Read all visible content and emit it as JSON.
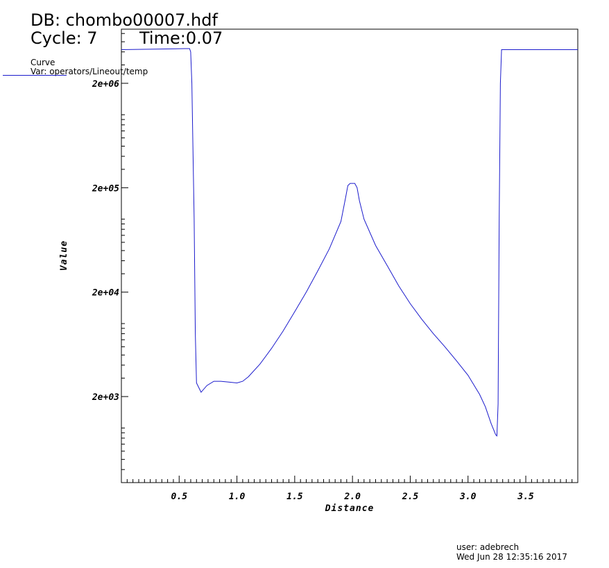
{
  "header": {
    "db": "DB: chombo00007.hdf",
    "cycle": "Cycle: 7",
    "time": "Time:0.07"
  },
  "legend": {
    "heading": "Curve",
    "var": "Var: operators/Lineout/temp"
  },
  "footer": {
    "user": "user: adebrech",
    "date": "Wed Jun 28 12:35:16 2017"
  },
  "chart_data": {
    "type": "line",
    "xlabel": "Distance",
    "ylabel": "Value",
    "xlim": [
      0,
      3.95
    ],
    "ylim": [
      300,
      6600000
    ],
    "yscale": "log",
    "x_ticks": [
      0.5,
      1.0,
      1.5,
      2.0,
      2.5,
      3.0,
      3.5
    ],
    "x_tick_labels": [
      "0.5",
      "1.0",
      "1.5",
      "2.0",
      "2.5",
      "3.0",
      "3.5"
    ],
    "y_ticks": [
      2000,
      20000,
      200000,
      2000000
    ],
    "y_tick_labels": [
      "2e+03",
      "2e+04",
      "2e+05",
      "2e+06"
    ],
    "grid": false,
    "line_color": "#1a1acc",
    "series": [
      {
        "x": [
          0,
          0.55,
          0.59,
          0.6,
          0.61,
          0.63,
          0.64,
          0.65,
          0.69,
          0.74,
          0.8,
          0.86,
          0.93,
          1.0,
          1.05,
          1.1,
          1.2,
          1.3,
          1.4,
          1.5,
          1.6,
          1.7,
          1.8,
          1.9,
          1.94,
          1.96,
          1.98,
          2.02,
          2.04,
          2.06,
          2.1,
          2.2,
          2.3,
          2.4,
          2.5,
          2.6,
          2.7,
          2.8,
          2.9,
          3.0,
          3.1,
          3.15,
          3.2,
          3.24,
          3.25,
          3.26,
          3.27,
          3.28,
          3.29,
          3.5,
          3.95
        ],
        "y": [
          4200000,
          4300000,
          4300000,
          4000000,
          2000000,
          100000,
          8000,
          2700,
          2200,
          2550,
          2800,
          2800,
          2750,
          2700,
          2800,
          3100,
          4100,
          5800,
          8500,
          13000,
          20000,
          32000,
          52000,
          95000,
          160000,
          210000,
          220000,
          220000,
          200000,
          150000,
          100000,
          56000,
          36000,
          23000,
          15500,
          11000,
          8000,
          6000,
          4400,
          3200,
          2100,
          1600,
          1100,
          860,
          840,
          1700,
          100000,
          2000000,
          4200000,
          4200000,
          4200000
        ]
      }
    ]
  }
}
